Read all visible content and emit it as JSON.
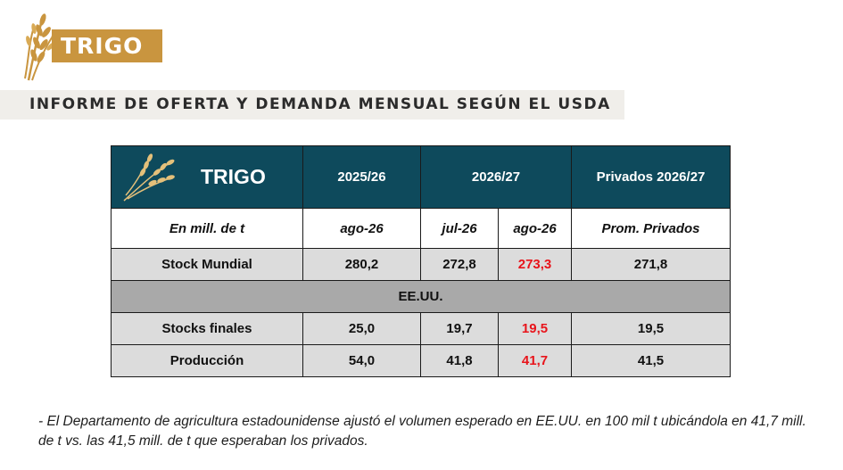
{
  "header": {
    "title": "TRIGO",
    "subtitle": "INFORME DE OFERTA Y DEMANDA MENSUAL SEGÚN EL USDA"
  },
  "table": {
    "brand": "TRIGO",
    "columns": [
      "2025/26",
      "2026/27",
      "Privados 2026/27"
    ],
    "subheaders": [
      "En mill. de t",
      "ago-26",
      "jul-26",
      "ago-26",
      "Prom. Privados"
    ],
    "section": "EE.UU.",
    "rows": [
      {
        "label": "Stock Mundial",
        "values": [
          "280,2",
          "272,8",
          "273,3",
          "271,8"
        ]
      },
      {
        "label": "Stocks finales",
        "values": [
          "25,0",
          "19,7",
          "19,5",
          "19,5"
        ]
      },
      {
        "label": "Producción",
        "values": [
          "54,0",
          "41,8",
          "41,7",
          "41,5"
        ]
      }
    ]
  },
  "note": "- El Departamento de agricultura estadounidense ajustó el volumen esperado en EE.UU. en 100 mil t ubicándola en 41,7 mill. de t vs. las 41,5 mill. de t que esperaban los privados.",
  "colors": {
    "accent": "#c9953f",
    "table_header": "#0e4a5c",
    "highlight": "#e8141b",
    "row_gray": "#dcdcdc",
    "section_gray": "#a9a9a9"
  }
}
